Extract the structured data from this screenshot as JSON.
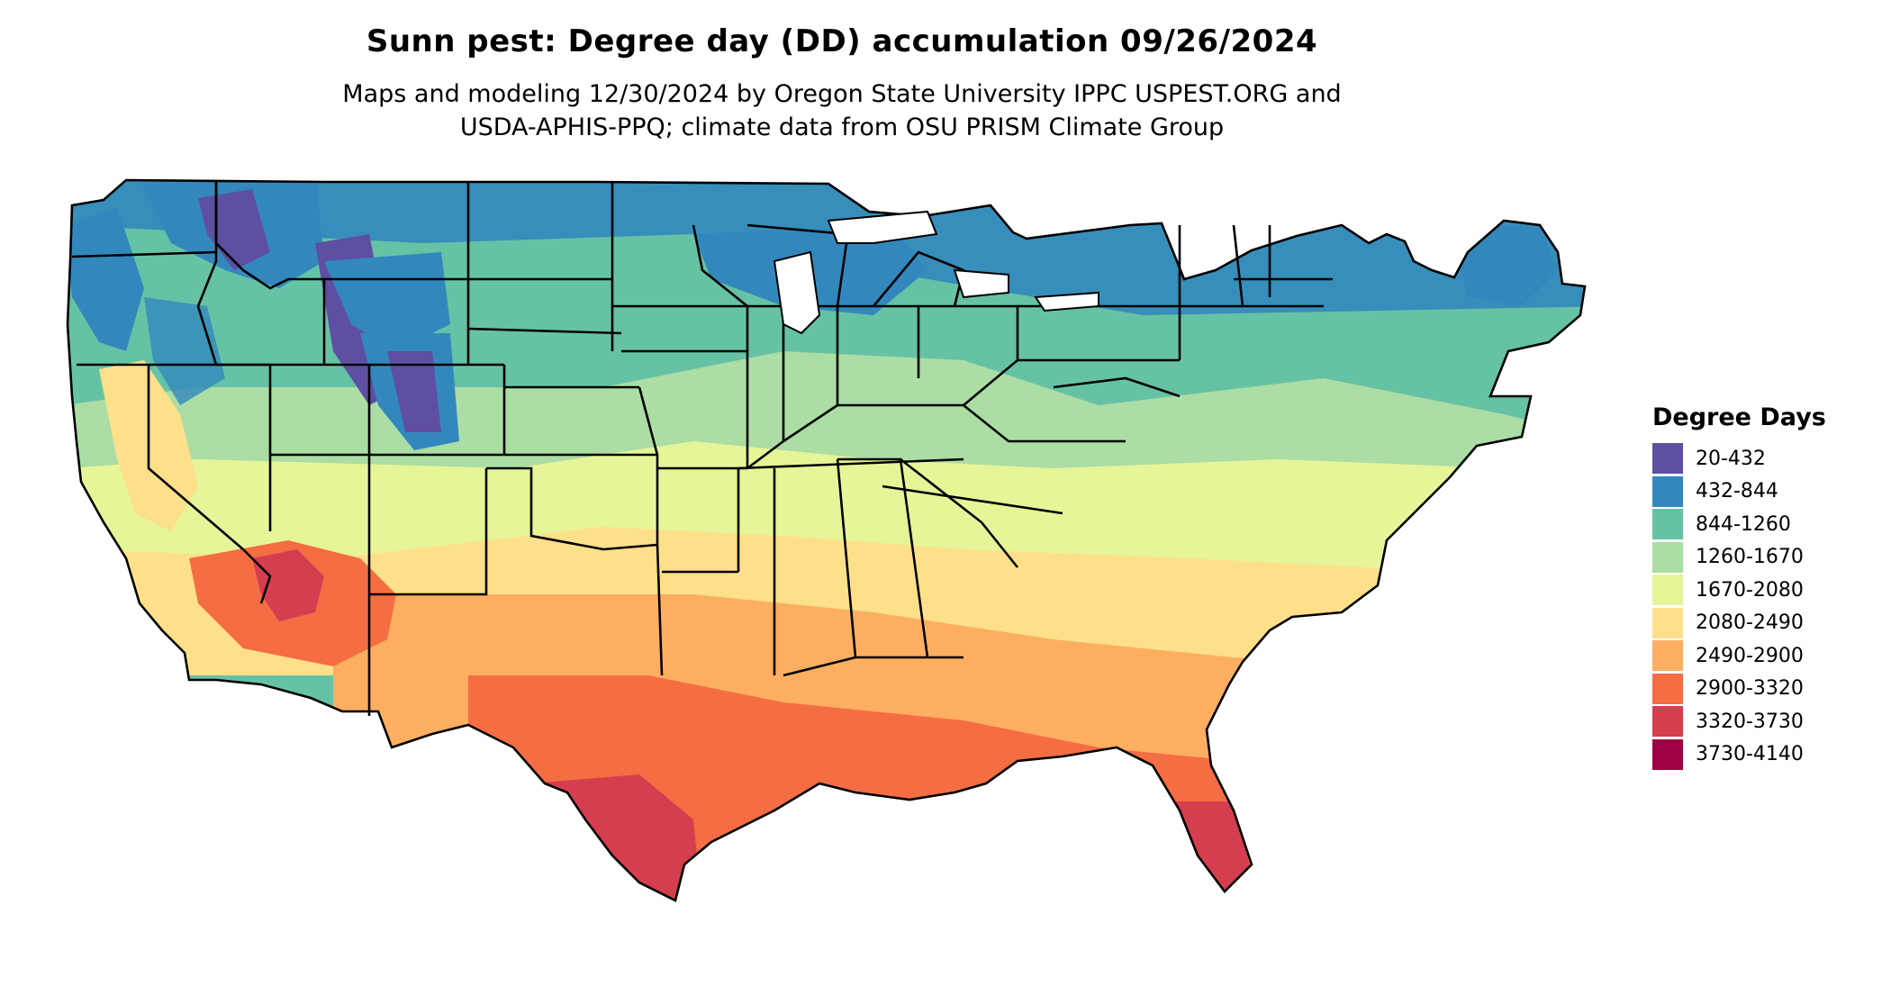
{
  "header": {
    "title": "Sunn pest: Degree day (DD) accumulation 09/26/2024",
    "subtitle_line1": "Maps and modeling 12/30/2024 by Oregon State University IPPC USPEST.ORG and",
    "subtitle_line2": "USDA-APHIS-PPQ; climate data from OSU PRISM Climate Group"
  },
  "legend": {
    "title": "Degree Days",
    "items": [
      {
        "label": "20-432",
        "color": "#5e4fa2"
      },
      {
        "label": "432-844",
        "color": "#3288bd"
      },
      {
        "label": "844-1260",
        "color": "#66c2a5"
      },
      {
        "label": "1260-1670",
        "color": "#abdda4"
      },
      {
        "label": "1670-2080",
        "color": "#e6f598"
      },
      {
        "label": "2080-2490",
        "color": "#fee08b"
      },
      {
        "label": "2490-2900",
        "color": "#fdae61"
      },
      {
        "label": "2900-3320",
        "color": "#f46d43"
      },
      {
        "label": "3320-3730",
        "color": "#d53e4f"
      },
      {
        "label": "3730-4140",
        "color": "#9e0142"
      }
    ]
  },
  "map": {
    "region": "contiguous United States",
    "boundary_color": "#000000"
  }
}
